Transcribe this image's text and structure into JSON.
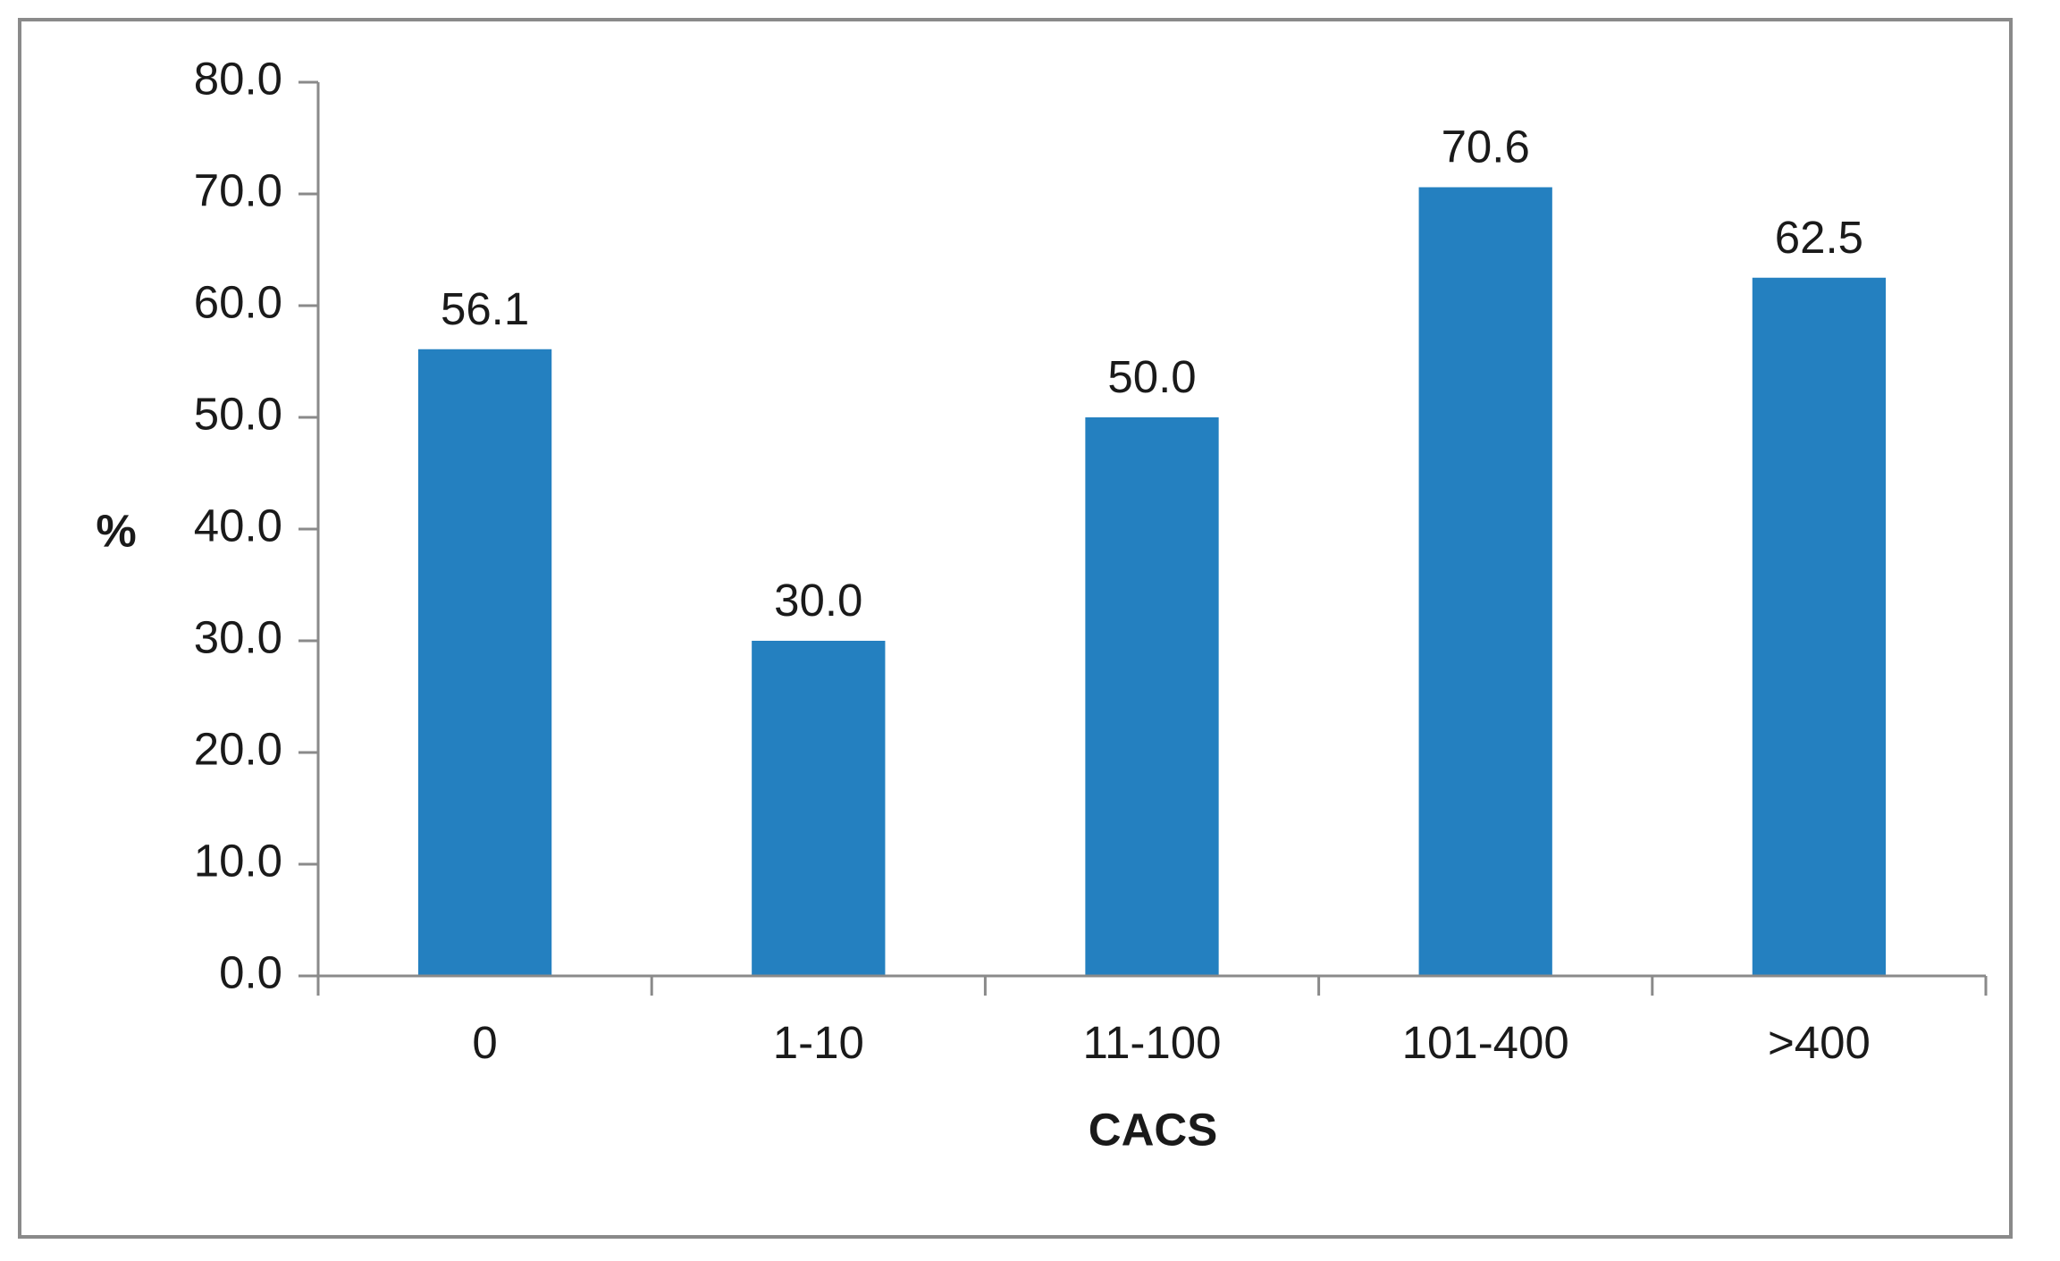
{
  "chart_data": {
    "type": "bar",
    "categories": [
      "0",
      "1-10",
      "11-100",
      "101-400",
      ">400"
    ],
    "values": [
      56.1,
      30.0,
      50.0,
      70.6,
      62.5
    ],
    "data_labels": [
      "56.1",
      "30.0",
      "50.0",
      "70.6",
      "62.5"
    ],
    "title": "",
    "xlabel": "CACS",
    "ylabel": "%",
    "ylim": [
      0,
      80
    ],
    "yticks": [
      0,
      10,
      20,
      30,
      40,
      50,
      60,
      70,
      80
    ],
    "ytick_labels": [
      "0.0",
      "10.0",
      "20.0",
      "30.0",
      "40.0",
      "50.0",
      "60.0",
      "70.0",
      "80.0"
    ],
    "grid": false,
    "legend": "none",
    "bar_color": "#2480c0",
    "axis_color": "#8a8a8a",
    "frame_color": "#8a8a8a"
  }
}
